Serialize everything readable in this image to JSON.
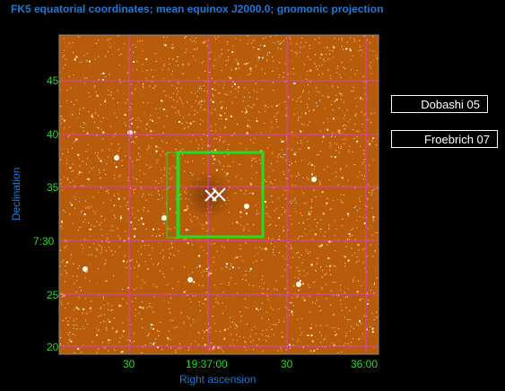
{
  "title": "FK5 equatorial coordinates; mean equinox J2000.0; gnomonic projection",
  "axes": {
    "x_label": "Right ascension",
    "y_label": "Declination",
    "x_ticks": [
      "30",
      "19:37:00",
      "30",
      "36:00"
    ],
    "y_ticks": [
      "45",
      "40",
      "35",
      "7:30",
      "25",
      "20"
    ]
  },
  "buttons": [
    {
      "label": "Dobashi 05"
    },
    {
      "label": "Froebrich 07"
    }
  ],
  "colors": {
    "title_text": "#1e7ad6",
    "tick_text": "#22dd22",
    "grid": "#e040c0",
    "overlay_box": "#22dd22",
    "sky_background": "#b85c0c"
  }
}
